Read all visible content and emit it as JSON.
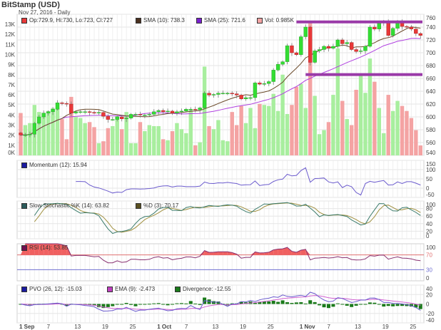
{
  "header": {
    "title": "BitStamp (USD)",
    "subtitle": "Nov 27, 2016 - Daily"
  },
  "legends": {
    "ohlc": "Op:729.9, Hi:730, Lo:723, Cl:727",
    "sma10": "SMA (10): 738.3",
    "sma25": "SMA (25): 721.6",
    "vol": "Vol: 0.985K",
    "momentum": "Momentum (12): 15.94",
    "stoch_k": "Slow Stochastic %K (14): 63.82",
    "stoch_d": "%D (3): 70.17",
    "rsi": "RSI (14): 53.85",
    "pvo": "PVO (26, 12): -15.03",
    "pvo_ema": "EMA (9): -2.473",
    "pvo_div": "Divergence: -12.55"
  },
  "colors": {
    "up": "#33dd33",
    "down": "#e83838",
    "vol_up": "#a8ee9e",
    "vol_down": "#f4a3a3",
    "sma10": "#6b4a2a",
    "sma25": "#b040e0",
    "levels": "#9a3aa8",
    "momentum": "#6a5acd",
    "stoch_k": "#3a7a6a",
    "stoch_d": "#a09040",
    "rsi": "#883070",
    "pvo": "#6a5acd",
    "pvo_ema": "#d060d0",
    "pvo_div": "#1a7a1a"
  },
  "chart_data": {
    "type": "candlestick",
    "title": "BitStamp (USD)",
    "start_date": "Sep 1, 2016",
    "first_open": 575,
    "close": [
      572,
      572,
      573,
      590,
      600,
      606,
      608,
      612,
      622,
      621,
      620,
      606,
      608,
      608,
      608,
      607,
      606,
      607,
      601,
      596,
      596,
      600,
      597,
      598,
      604,
      604,
      603,
      603,
      604,
      608,
      610,
      608,
      609,
      606,
      608,
      609,
      612,
      612,
      611,
      614,
      637,
      634,
      635,
      637,
      637,
      637,
      636,
      634,
      628,
      630,
      630,
      653,
      651,
      652,
      655,
      673,
      682,
      686,
      711,
      700,
      697,
      725,
      740,
      685,
      703,
      705,
      710,
      707,
      710,
      720,
      714,
      716,
      705,
      702,
      703,
      710,
      740,
      737,
      747,
      748,
      727,
      738,
      748,
      741,
      740,
      737,
      730,
      727
    ],
    "volume_k": [
      4.2,
      3.0,
      3.2,
      5.0,
      4.3,
      4.2,
      4.4,
      4.7,
      4.7,
      3.6,
      1.6,
      5.8,
      3.8,
      3.7,
      3.2,
      3.3,
      2.8,
      1.2,
      1.4,
      2.7,
      2.9,
      3.9,
      2.6,
      4.3,
      1.2,
      1.2,
      3.3,
      2.4,
      3.0,
      2.9,
      2.9,
      1.6,
      1.5,
      2.4,
      3.2,
      2.6,
      2.2,
      4.5,
      1.0,
      1.3,
      8.8,
      2.9,
      2.6,
      3.5,
      1.5,
      1.4,
      4.3,
      3.0,
      4.9,
      3.2,
      4.7,
      2.7,
      5.1,
      5.0,
      4.9,
      6.1,
      4.4,
      8.0,
      4.1,
      5.0,
      6.8,
      7.1,
      4.7,
      13.1,
      5.9,
      2.1,
      2.5,
      3.3,
      6.0,
      10.6,
      5.4,
      3.6,
      3.0,
      6.5,
      8.0,
      6.2,
      9.6,
      7.3,
      4.7,
      2.2,
      6.0,
      4.4,
      5.4,
      4.9,
      4.4,
      3.7,
      2.5,
      0.985
    ],
    "price_axis": {
      "min": 540,
      "max": 760,
      "ticks": [
        "540",
        "560",
        "580",
        "600",
        "620",
        "640",
        "660",
        "680",
        "700",
        "720",
        "740",
        "760"
      ]
    },
    "volume_axis": {
      "min": 0,
      "max": 13,
      "ticks": [
        "0K",
        "1K",
        "2K",
        "3K",
        "4K",
        "5K",
        "6K",
        "7K",
        "8K",
        "9K",
        "10K",
        "11K",
        "12K",
        "13K"
      ]
    },
    "x_ticks": [
      {
        "i": 0,
        "label": "1 Sep",
        "bold": true
      },
      {
        "i": 6,
        "label": "7"
      },
      {
        "i": 12,
        "label": "13"
      },
      {
        "i": 18,
        "label": "19"
      },
      {
        "i": 24,
        "label": "25"
      },
      {
        "i": 30,
        "label": "1 Oct",
        "bold": true
      },
      {
        "i": 36,
        "label": "7"
      },
      {
        "i": 42,
        "label": "13"
      },
      {
        "i": 48,
        "label": "19"
      },
      {
        "i": 54,
        "label": "25"
      },
      {
        "i": 61,
        "label": "1 Nov",
        "bold": true
      },
      {
        "i": 67,
        "label": "7"
      },
      {
        "i": 73,
        "label": "13"
      },
      {
        "i": 79,
        "label": "19"
      },
      {
        "i": 85,
        "label": "25"
      }
    ],
    "levels": [
      {
        "price": 748,
        "from_index": 60
      },
      {
        "price": 666,
        "from_index": 62
      }
    ],
    "panels": {
      "momentum": {
        "period": 12,
        "min": -50,
        "max": 150,
        "ticks": [
          "-50",
          "0",
          "50",
          "100",
          "150"
        ]
      },
      "stochastic": {
        "period": 14,
        "smooth": 3,
        "min": 0,
        "max": 100,
        "ticks": [
          "0",
          "20",
          "40",
          "60",
          "80",
          "100"
        ]
      },
      "rsi": {
        "period": 14,
        "min": 0,
        "max": 100,
        "ticks": [
          "0",
          "30",
          "70",
          "100"
        ],
        "overbought": 70,
        "oversold": 30
      },
      "pvo": {
        "fast": 12,
        "slow": 26,
        "signal": 9,
        "min": -40,
        "max": 40,
        "ticks": [
          "-40",
          "-20",
          "0",
          "20",
          "40"
        ]
      }
    }
  }
}
